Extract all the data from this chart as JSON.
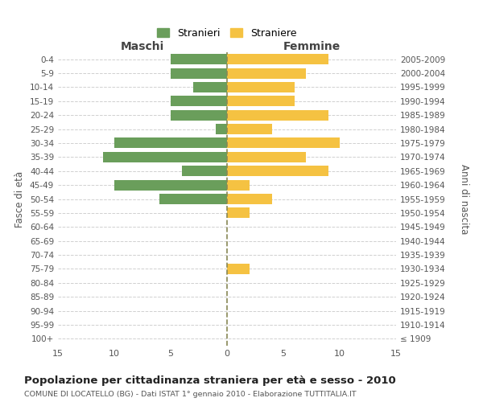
{
  "age_groups": [
    "0-4",
    "5-9",
    "10-14",
    "15-19",
    "20-24",
    "25-29",
    "30-34",
    "35-39",
    "40-44",
    "45-49",
    "50-54",
    "55-59",
    "60-64",
    "65-69",
    "70-74",
    "75-79",
    "80-84",
    "85-89",
    "90-94",
    "95-99",
    "100+"
  ],
  "birth_years": [
    "2005-2009",
    "2000-2004",
    "1995-1999",
    "1990-1994",
    "1985-1989",
    "1980-1984",
    "1975-1979",
    "1970-1974",
    "1965-1969",
    "1960-1964",
    "1955-1959",
    "1950-1954",
    "1945-1949",
    "1940-1944",
    "1935-1939",
    "1930-1934",
    "1925-1929",
    "1920-1924",
    "1915-1919",
    "1910-1914",
    "≤ 1909"
  ],
  "maschi": [
    5,
    5,
    3,
    5,
    5,
    1,
    10,
    11,
    4,
    10,
    6,
    0,
    0,
    0,
    0,
    0,
    0,
    0,
    0,
    0,
    0
  ],
  "femmine": [
    9,
    7,
    6,
    6,
    9,
    4,
    10,
    7,
    9,
    2,
    4,
    2,
    0,
    0,
    0,
    2,
    0,
    0,
    0,
    0,
    0
  ],
  "maschi_color": "#6a9e5b",
  "femmine_color": "#f5c242",
  "background_color": "#ffffff",
  "grid_color": "#d0d0d0",
  "title": "Popolazione per cittadinanza straniera per età e sesso - 2010",
  "subtitle": "COMUNE DI LOCATELLO (BG) - Dati ISTAT 1° gennaio 2010 - Elaborazione TUTTITALIA.IT",
  "ylabel_left": "Fasce di età",
  "ylabel_right": "Anni di nascita",
  "xlabel_maschi": "Maschi",
  "xlabel_femmine": "Femmine",
  "legend_stranieri": "Stranieri",
  "legend_straniere": "Straniere",
  "xlim": 15
}
